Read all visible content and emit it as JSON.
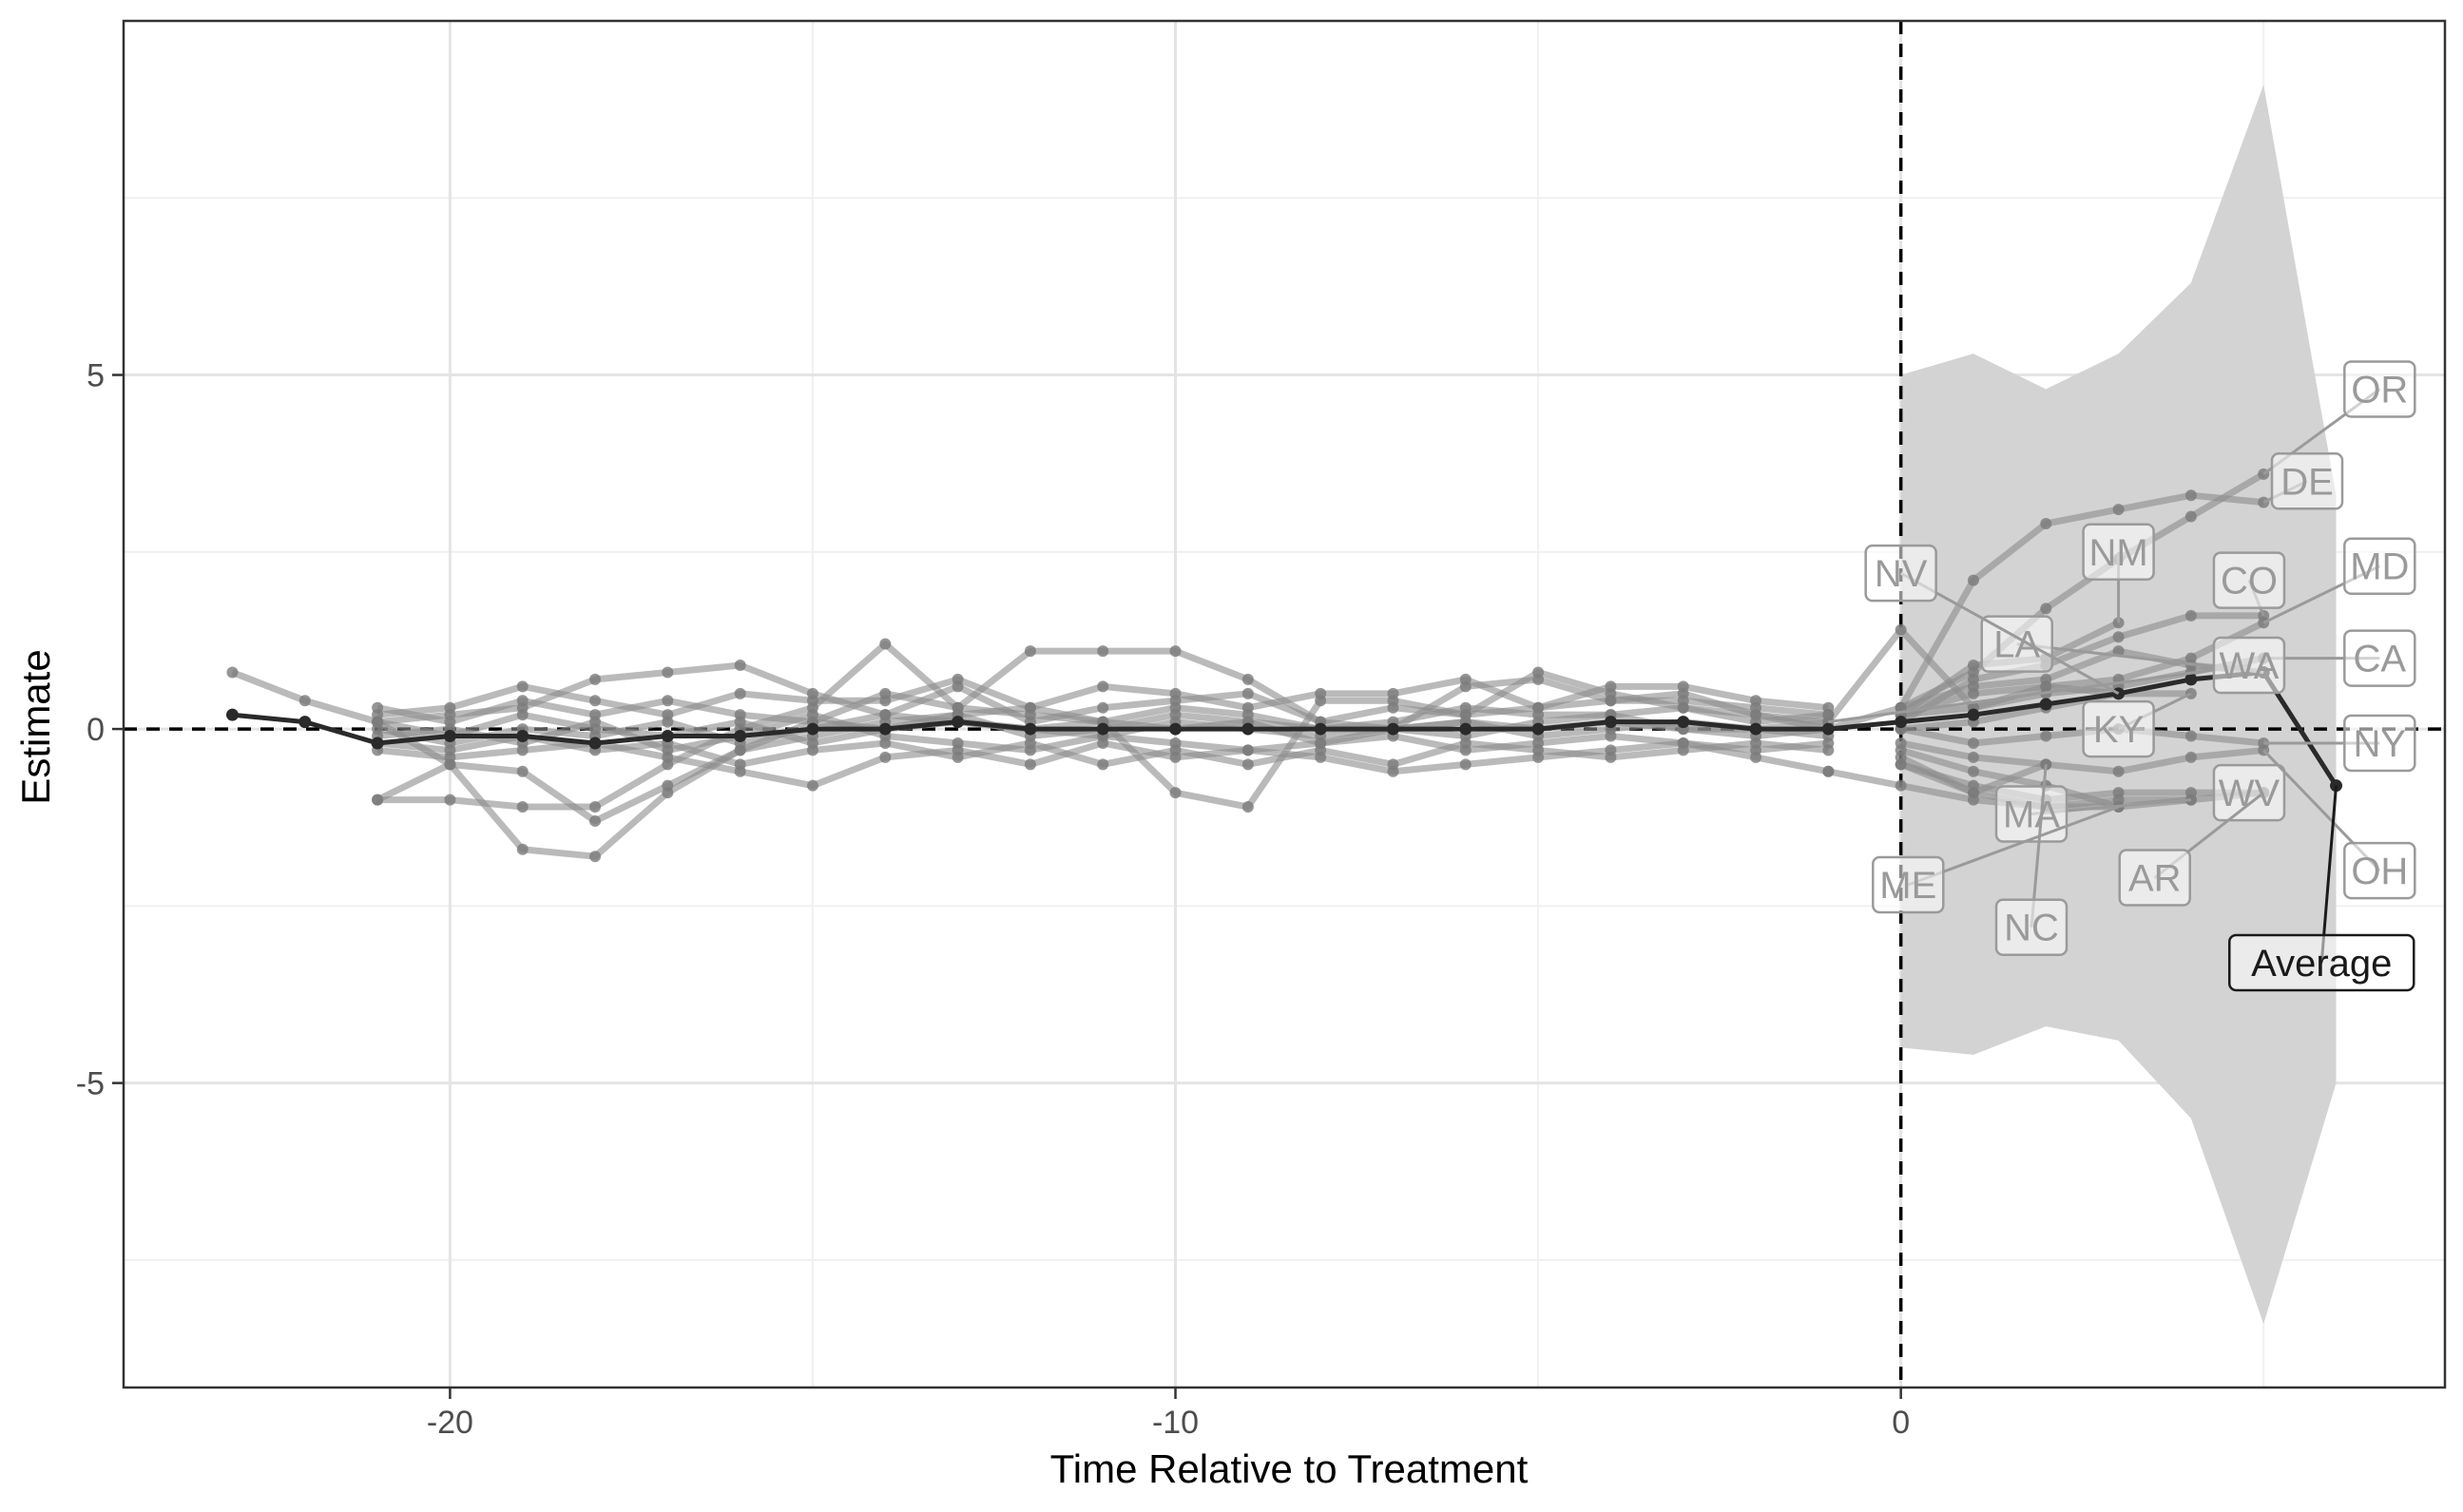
{
  "chart_data": {
    "type": "line",
    "xlabel": "Time Relative to Treatment",
    "ylabel": "Estimate",
    "xlim": [
      -24.5,
      7.5
    ],
    "ylim": [
      -9.3,
      10.0
    ],
    "x_ticks": [
      -20,
      -10,
      0
    ],
    "x_tick_labels": [
      "-20",
      "-10",
      "0"
    ],
    "y_ticks": [
      -5,
      0,
      5
    ],
    "y_tick_labels": [
      "-5",
      "0",
      "5"
    ],
    "grid": true,
    "reference_lines": [
      {
        "axis": "x",
        "value": 0,
        "style": "dashed"
      },
      {
        "axis": "y",
        "value": 0,
        "style": "dashed"
      }
    ],
    "confidence_band": {
      "x": [
        0,
        1,
        2,
        3,
        4,
        5,
        6
      ],
      "lower": [
        -4.5,
        -4.6,
        -4.2,
        -4.4,
        -5.5,
        -8.4,
        -5.0
      ],
      "upper": [
        5.0,
        5.3,
        4.8,
        5.3,
        6.3,
        9.1,
        3.3
      ]
    },
    "series": [
      {
        "name": "OR",
        "x": [
          0,
          1,
          2,
          3,
          4,
          5
        ],
        "y": [
          0.3,
          0.8,
          1.7,
          2.4,
          3.0,
          3.6
        ]
      },
      {
        "name": "DE",
        "x": [
          -1,
          0,
          1,
          2,
          3,
          4,
          5
        ],
        "y": [
          0.0,
          0.3,
          2.1,
          2.9,
          3.1,
          3.3,
          3.2
        ]
      },
      {
        "name": "NM",
        "x": [
          0,
          1,
          2,
          3
        ],
        "y": [
          0.2,
          0.9,
          1.0,
          1.5
        ]
      },
      {
        "name": "CO",
        "x": [
          0,
          1,
          2,
          3,
          4,
          5
        ],
        "y": [
          0.1,
          0.7,
          0.9,
          1.3,
          1.6,
          1.6
        ]
      },
      {
        "name": "MD",
        "x": [
          0,
          1,
          2,
          3,
          4,
          5
        ],
        "y": [
          0.2,
          0.5,
          0.6,
          0.7,
          1.0,
          1.5
        ]
      },
      {
        "name": "LA",
        "x": [
          0,
          1,
          2,
          3,
          4,
          5
        ],
        "y": [
          0.3,
          0.6,
          0.7,
          1.1,
          0.9,
          0.8
        ]
      },
      {
        "name": "NV",
        "x": [
          -1,
          0,
          1,
          2,
          3
        ],
        "y": [
          0.1,
          1.4,
          0.3,
          0.6,
          0.5
        ]
      },
      {
        "name": "CA",
        "x": [
          0,
          1,
          2,
          3,
          4,
          5
        ],
        "y": [
          0.2,
          0.3,
          0.5,
          0.6,
          0.8,
          1.0
        ]
      },
      {
        "name": "KY",
        "x": [
          0,
          1,
          2,
          3,
          4
        ],
        "y": [
          0.0,
          0.1,
          0.3,
          0.5,
          0.5
        ]
      },
      {
        "name": "NY",
        "x": [
          0,
          1,
          2,
          3,
          4,
          5
        ],
        "y": [
          0.0,
          -0.2,
          -0.1,
          0.0,
          -0.1,
          -0.2
        ]
      },
      {
        "name": "WV",
        "x": [
          0,
          1,
          2,
          3,
          4,
          5
        ],
        "y": [
          -0.5,
          -0.8,
          -1.0,
          -0.9,
          -0.9,
          -0.9
        ]
      },
      {
        "name": "MA",
        "x": [
          0,
          1,
          2,
          3,
          4
        ],
        "y": [
          -0.4,
          -0.9,
          -1.1,
          -1.0,
          -1.0
        ]
      },
      {
        "name": "AR",
        "x": [
          0,
          1,
          2,
          3,
          4,
          5
        ],
        "y": [
          -0.3,
          -0.6,
          -0.8,
          -1.1,
          -1.0,
          -0.9
        ]
      },
      {
        "name": "OH",
        "x": [
          0,
          1,
          2,
          3,
          4,
          5
        ],
        "y": [
          -0.2,
          -0.4,
          -0.5,
          -0.6,
          -0.4,
          -0.3
        ]
      },
      {
        "name": "NC",
        "x": [
          0,
          1,
          2
        ],
        "y": [
          -0.5,
          -0.9,
          -0.5
        ]
      },
      {
        "name": "ME",
        "x": [
          -1,
          0,
          1,
          2,
          3
        ],
        "y": [
          -0.6,
          -0.8,
          -1.0,
          -1.1,
          -1.1
        ]
      },
      {
        "name": "",
        "x": [
          -23,
          -22,
          -21,
          -20,
          -19,
          -18,
          -17,
          -16,
          -15,
          -14,
          -13,
          -12,
          -11,
          -10,
          -9,
          -8,
          -7,
          -6,
          -5,
          -4,
          -3,
          -2,
          -1
        ],
        "y": [
          0.8,
          0.4,
          0.1,
          -0.5,
          -1.7,
          -1.8,
          -0.9,
          -0.3,
          0.1,
          0.0,
          0.1,
          0.0,
          0.1,
          0.0,
          0.1,
          0.0,
          0.0,
          0.1,
          0.0,
          0.1,
          0.0,
          0.0,
          0.1
        ]
      },
      {
        "name": "",
        "x": [
          -21,
          -20,
          -19,
          -18,
          -17,
          -16,
          -15,
          -14,
          -13,
          -12,
          -11,
          -10,
          -9,
          -8,
          -7,
          -6,
          -5,
          -4,
          -3,
          -2,
          -1
        ],
        "y": [
          -1.0,
          -1.0,
          -1.1,
          -1.1,
          -0.5,
          0.0,
          0.3,
          1.2,
          0.3,
          1.1,
          1.1,
          1.1,
          0.7,
          0.1,
          0.0,
          0.6,
          0.7,
          0.4,
          0.5,
          0.2,
          0.1
        ]
      },
      {
        "name": "",
        "x": [
          -21,
          -20,
          -19,
          -18,
          -17,
          -16,
          -15,
          -14,
          -13,
          -12,
          -11,
          -10,
          -9,
          -8,
          -7,
          -6,
          -5,
          -4,
          -3,
          -2,
          -1
        ],
        "y": [
          -1.0,
          -0.5,
          -0.6,
          -1.3,
          -0.8,
          -0.3,
          -0.1,
          0.1,
          0.2,
          0.3,
          0.1,
          -0.9,
          -1.1,
          0.4,
          0.4,
          0.2,
          0.8,
          0.5,
          0.3,
          0.2,
          0.0
        ]
      },
      {
        "name": "",
        "x": [
          -21,
          -20,
          -19,
          -18,
          -17,
          -16,
          -15,
          -14,
          -13,
          -12,
          -11,
          -10,
          -9,
          -8,
          -7,
          -6,
          -5,
          -4,
          -3,
          -2,
          -1
        ],
        "y": [
          0.2,
          0.3,
          0.6,
          0.4,
          0.2,
          0.5,
          0.4,
          0.4,
          0.7,
          0.3,
          0.6,
          0.5,
          0.3,
          0.5,
          0.5,
          0.7,
          0.3,
          0.6,
          0.6,
          0.4,
          0.3
        ]
      },
      {
        "name": "",
        "x": [
          -21,
          -20,
          -19,
          -18,
          -17,
          -16,
          -15,
          -14,
          -13,
          -12,
          -11,
          -10,
          -9,
          -8,
          -7,
          -6,
          -5,
          -4,
          -3,
          -2,
          -1
        ],
        "y": [
          0.1,
          0.2,
          0.3,
          0.7,
          0.8,
          0.9,
          0.5,
          0.2,
          0.6,
          0.1,
          0.3,
          0.4,
          0.5,
          0.1,
          0.3,
          0.2,
          0.3,
          0.4,
          0.4,
          0.3,
          0.2
        ]
      },
      {
        "name": "",
        "x": [
          -21,
          -20,
          -19,
          -18,
          -17,
          -16,
          -15,
          -14,
          -13,
          -12,
          -11,
          -10,
          -9,
          -8,
          -7,
          -6,
          -5,
          -4,
          -3,
          -2,
          -1
        ],
        "y": [
          0.3,
          0.1,
          0.4,
          0.2,
          0.4,
          0.2,
          0.1,
          0.5,
          0.3,
          0.2,
          0.1,
          0.3,
          0.2,
          0.0,
          0.1,
          0.3,
          0.2,
          0.2,
          0.3,
          0.1,
          0.2
        ]
      },
      {
        "name": "",
        "x": [
          -21,
          -20,
          -19,
          -18,
          -17,
          -16,
          -15,
          -14,
          -13,
          -12,
          -11,
          -10,
          -9,
          -8,
          -7,
          -6,
          -5,
          -4,
          -3,
          -2,
          -1
        ],
        "y": [
          0.0,
          -0.2,
          0.0,
          -0.1,
          0.1,
          -0.2,
          0.0,
          0.2,
          0.1,
          0.0,
          -0.1,
          0.1,
          0.0,
          -0.1,
          0.0,
          0.1,
          -0.1,
          0.0,
          0.1,
          0.0,
          -0.1
        ]
      },
      {
        "name": "",
        "x": [
          -21,
          -20,
          -19,
          -18,
          -17,
          -16,
          -15,
          -14,
          -13,
          -12,
          -11,
          -10,
          -9,
          -8,
          -7,
          -6,
          -5,
          -4,
          -3,
          -2,
          -1
        ],
        "y": [
          -0.1,
          0.0,
          -0.2,
          0.1,
          -0.3,
          -0.1,
          0.2,
          -0.1,
          -0.2,
          -0.3,
          -0.1,
          -0.2,
          -0.3,
          -0.2,
          -0.1,
          -0.3,
          -0.2,
          -0.1,
          -0.2,
          -0.3,
          -0.2
        ]
      },
      {
        "name": "",
        "x": [
          -21,
          -20,
          -19,
          -18,
          -17,
          -16,
          -15,
          -14,
          -13,
          -12,
          -11,
          -10,
          -9,
          -8,
          -7,
          -6,
          -5,
          -4,
          -3,
          -2,
          -1
        ],
        "y": [
          -0.3,
          -0.4,
          -0.3,
          -0.2,
          -0.4,
          -0.6,
          -0.8,
          -0.4,
          -0.3,
          -0.5,
          -0.2,
          -0.4,
          -0.3,
          -0.4,
          -0.6,
          -0.5,
          -0.4,
          -0.3,
          -0.2,
          -0.4,
          -0.6
        ]
      },
      {
        "name": "",
        "x": [
          -21,
          -20,
          -19,
          -18,
          -17,
          -16,
          -15,
          -14,
          -13,
          -12,
          -11,
          -10,
          -9,
          -8,
          -7,
          -6,
          -5,
          -4,
          -3,
          -2,
          -1
        ],
        "y": [
          -0.2,
          -0.3,
          -0.1,
          -0.3,
          -0.2,
          -0.5,
          -0.3,
          -0.2,
          -0.4,
          -0.2,
          -0.5,
          -0.3,
          -0.5,
          -0.3,
          -0.5,
          -0.2,
          -0.3,
          -0.4,
          -0.3,
          -0.2,
          -0.3
        ]
      },
      {
        "name": "",
        "x": [
          -21,
          -20,
          -19,
          -18,
          -17,
          -16,
          -15,
          -14,
          -13,
          -12,
          -11,
          -10,
          -9,
          -8,
          -7,
          -6,
          -5,
          -4,
          -3,
          -2,
          -1
        ],
        "y": [
          0.1,
          -0.1,
          0.2,
          0.0,
          -0.1,
          0.1,
          -0.2,
          0.0,
          0.2,
          -0.1,
          0.0,
          0.2,
          0.1,
          -0.2,
          0.0,
          -0.1,
          0.1,
          0.2,
          0.0,
          -0.1,
          0.0
        ]
      }
    ],
    "average": {
      "name": "Average",
      "x": [
        -23,
        -22,
        -21,
        -20,
        -19,
        -18,
        -17,
        -16,
        -15,
        -14,
        -13,
        -12,
        -11,
        -10,
        -9,
        -8,
        -7,
        -6,
        -5,
        -4,
        -3,
        -2,
        -1,
        0,
        1,
        2,
        3,
        4,
        5,
        6
      ],
      "y": [
        0.2,
        0.1,
        -0.2,
        -0.1,
        -0.1,
        -0.2,
        -0.1,
        -0.1,
        0.0,
        0.0,
        0.1,
        0.0,
        0.0,
        0.0,
        0.0,
        0.0,
        0.0,
        0.0,
        0.0,
        0.1,
        0.1,
        0.0,
        0.0,
        0.1,
        0.2,
        0.35,
        0.5,
        0.7,
        0.8,
        -0.8
      ]
    },
    "labels": [
      {
        "text": "OR",
        "series": "OR",
        "x": 6.6,
        "y": 4.8
      },
      {
        "text": "DE",
        "series": "DE",
        "x": 5.6,
        "y": 3.5
      },
      {
        "text": "NM",
        "series": "NM",
        "x": 3.0,
        "y": 2.5
      },
      {
        "text": "CO",
        "series": "CO",
        "x": 4.8,
        "y": 2.1
      },
      {
        "text": "MD",
        "series": "MD",
        "x": 6.6,
        "y": 2.3
      },
      {
        "text": "LA",
        "series": "LA",
        "x": 1.6,
        "y": 1.2
      },
      {
        "text": "NV",
        "series": "NV",
        "x": 0.0,
        "y": 2.2
      },
      {
        "text": "CA",
        "series": "CA",
        "x": 6.6,
        "y": 1.0
      },
      {
        "text": "KY",
        "series": "KY",
        "x": 3.0,
        "y": 0.0
      },
      {
        "text": "WA",
        "series": "",
        "x": 4.8,
        "y": 0.9
      },
      {
        "text": "NY",
        "series": "NY",
        "x": 6.6,
        "y": -0.2
      },
      {
        "text": "WV",
        "series": "WV",
        "x": 4.8,
        "y": -0.9
      },
      {
        "text": "MA",
        "series": "MA",
        "x": 1.8,
        "y": -1.2
      },
      {
        "text": "AR",
        "series": "AR",
        "x": 3.5,
        "y": -2.1
      },
      {
        "text": "OH",
        "series": "OH",
        "x": 6.6,
        "y": -2.0
      },
      {
        "text": "NC",
        "series": "NC",
        "x": 1.8,
        "y": -2.8
      },
      {
        "text": "ME",
        "series": "ME",
        "x": 0.1,
        "y": -2.2
      },
      {
        "text": "Average",
        "series": "Average",
        "x": 5.8,
        "y": -3.3
      }
    ]
  }
}
